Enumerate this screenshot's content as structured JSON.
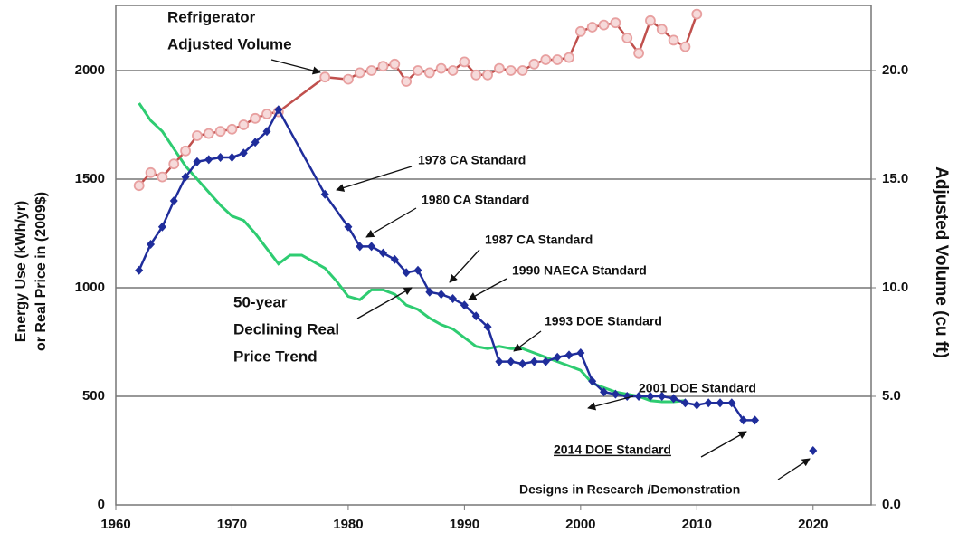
{
  "chart_data": {
    "type": "line",
    "y_label": [
      "Energy Use (kWh/yr)",
      "or Real Price in (2009$)"
    ],
    "y2_label": "Adjusted Volume (cu ft)",
    "xlim": [
      1960,
      2025
    ],
    "xticks": [
      1960,
      1970,
      1980,
      1990,
      2000,
      2010,
      2020
    ],
    "ylim": [
      0,
      2300
    ],
    "yticks": [
      0,
      500,
      1000,
      1500,
      2000
    ],
    "y2lim": [
      0,
      23
    ],
    "y2ticks": [
      {
        "value": 0,
        "label": "0.0"
      },
      {
        "value": 5,
        "label": "5.0"
      },
      {
        "value": 10,
        "label": "10.0"
      },
      {
        "value": 15,
        "label": "15.0"
      },
      {
        "value": 20,
        "label": "20.0"
      }
    ],
    "grid": true,
    "series": [
      {
        "color": "#e8a0a0",
        "line_color": "#c0504d",
        "marker": "circle",
        "axis": "y2",
        "x": [
          1962,
          1963,
          1964,
          1965,
          1966,
          1967,
          1968,
          1969,
          1970,
          1971,
          1972,
          1973,
          1974,
          1978,
          1980,
          1981,
          1982,
          1983,
          1984,
          1985,
          1986,
          1987,
          1988,
          1989,
          1990,
          1991,
          1992,
          1993,
          1994,
          1995,
          1996,
          1997,
          1998,
          1999,
          2000,
          2001,
          2002,
          2003,
          2004,
          2005,
          2006,
          2007,
          2008,
          2009,
          2010
        ],
        "values": [
          14.7,
          15.3,
          15.1,
          15.7,
          16.3,
          17.0,
          17.1,
          17.2,
          17.3,
          17.5,
          17.8,
          18.0,
          18.1,
          19.7,
          19.6,
          19.9,
          20.0,
          20.2,
          20.3,
          19.5,
          20.0,
          19.9,
          20.1,
          20.0,
          20.4,
          19.8,
          19.8,
          20.1,
          20.0,
          20.0,
          20.3,
          20.5,
          20.5,
          20.6,
          21.8,
          22.0,
          22.1,
          22.2,
          21.5,
          20.8,
          22.3,
          21.9,
          21.4,
          21.1,
          22.6
        ]
      },
      {
        "color": "#1f2d9b",
        "line_color": "#1f2d9b",
        "marker": "diamond",
        "x": [
          1962,
          1963,
          1964,
          1965,
          1966,
          1967,
          1968,
          1969,
          1970,
          1971,
          1972,
          1973,
          1974,
          1978,
          1980,
          1981,
          1982,
          1983,
          1984,
          1985,
          1986,
          1987,
          1988,
          1989,
          1990,
          1991,
          1992,
          1993,
          1994,
          1995,
          1996,
          1997,
          1998,
          1999,
          2000,
          2001,
          2002,
          2003,
          2004,
          2005,
          2006,
          2007,
          2008,
          2009,
          2010,
          2011,
          2012,
          2013,
          2014,
          2015
        ],
        "values": [
          1080,
          1200,
          1280,
          1400,
          1510,
          1580,
          1590,
          1600,
          1600,
          1620,
          1670,
          1720,
          1820,
          1430,
          1280,
          1190,
          1190,
          1160,
          1130,
          1070,
          1080,
          980,
          970,
          950,
          920,
          870,
          820,
          660,
          660,
          650,
          660,
          660,
          680,
          690,
          700,
          570,
          520,
          510,
          500,
          500,
          500,
          500,
          490,
          470,
          460,
          470,
          470,
          470,
          390,
          390
        ]
      },
      {
        "color": "#1f2d9b",
        "marker": "diamond",
        "x": [
          2020
        ],
        "values": [
          250
        ]
      },
      {
        "line_color": "#2ecc71",
        "marker": "none",
        "x": [
          1962,
          1963,
          1964,
          1965,
          1966,
          1967,
          1968,
          1969,
          1970,
          1971,
          1972,
          1973,
          1974,
          1975,
          1976,
          1977,
          1978,
          1979,
          1980,
          1981,
          1982,
          1983,
          1984,
          1985,
          1986,
          1987,
          1988,
          1989,
          1990,
          1991,
          1992,
          1993,
          1994,
          1995,
          1996,
          1997,
          1998,
          1999,
          2000,
          2001,
          2002,
          2003,
          2004,
          2005,
          2006,
          2007,
          2008,
          2009
        ],
        "values": [
          1850,
          1770,
          1720,
          1640,
          1560,
          1500,
          1440,
          1380,
          1330,
          1310,
          1250,
          1180,
          1110,
          1150,
          1150,
          1120,
          1090,
          1030,
          960,
          945,
          990,
          990,
          970,
          920,
          900,
          860,
          830,
          810,
          770,
          730,
          720,
          730,
          720,
          720,
          700,
          680,
          660,
          640,
          620,
          560,
          540,
          520,
          510,
          500,
          480,
          475,
          475,
          480
        ]
      }
    ],
    "annotations": [
      {
        "lines": [
          "Refrigerator",
          "Adjusted Volume"
        ]
      },
      {
        "lines": [
          "1978 CA Standard"
        ]
      },
      {
        "lines": [
          "1980 CA Standard"
        ]
      },
      {
        "lines": [
          "1987 CA Standard"
        ]
      },
      {
        "lines": [
          "1990 NAECA Standard"
        ]
      },
      {
        "lines": [
          "50-year",
          "Declining Real",
          "Price Trend"
        ]
      },
      {
        "lines": [
          "1993 DOE Standard"
        ]
      },
      {
        "lines": [
          "2001 DOE Standard"
        ]
      },
      {
        "lines": [
          "2014 DOE Standard"
        ]
      },
      {
        "lines": [
          "Designs in Research /Demonstration"
        ]
      }
    ]
  }
}
